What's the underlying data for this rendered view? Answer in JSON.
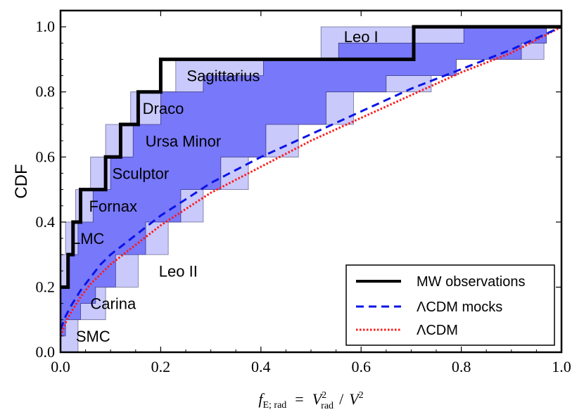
{
  "chart_data": {
    "type": "line",
    "xlabel": {
      "f": "f",
      "f_sub": "E; rad",
      "equals": "=",
      "V": "V",
      "V_sup": "2",
      "V_sub": "rad",
      "slash": "/",
      "V2": "V",
      "V2_sup": "2"
    },
    "ylabel": "CDF",
    "xlim": [
      0.0,
      1.0
    ],
    "ylim": [
      0.0,
      1.05
    ],
    "xticks": [
      "0.0",
      "0.2",
      "0.4",
      "0.6",
      "0.8",
      "1.0"
    ],
    "yticks": [
      "0.0",
      "0.2",
      "0.4",
      "0.6",
      "0.8",
      "1.0"
    ],
    "colors": {
      "outer_band": "#c9c9fb",
      "inner_band": "#7878fb",
      "observations": "#000000",
      "mocks": "#0a14e6",
      "lcdm": "#ff1a1a"
    },
    "series": [
      {
        "name": "MW observations",
        "style": "solid",
        "steps": [
          [
            0.0,
            0.2
          ],
          [
            0.015,
            0.3
          ],
          [
            0.025,
            0.4
          ],
          [
            0.04,
            0.5
          ],
          [
            0.09,
            0.6
          ],
          [
            0.12,
            0.7
          ],
          [
            0.155,
            0.8
          ],
          [
            0.2,
            0.9
          ],
          [
            0.705,
            1.0
          ]
        ]
      },
      {
        "name": "ΛCDM mocks",
        "style": "dashed",
        "points": [
          [
            0.0,
            0.07
          ],
          [
            0.01,
            0.11
          ],
          [
            0.02,
            0.14
          ],
          [
            0.04,
            0.19
          ],
          [
            0.06,
            0.23
          ],
          [
            0.08,
            0.27
          ],
          [
            0.1,
            0.3
          ],
          [
            0.15,
            0.36
          ],
          [
            0.2,
            0.42
          ],
          [
            0.25,
            0.47
          ],
          [
            0.3,
            0.52
          ],
          [
            0.4,
            0.6
          ],
          [
            0.5,
            0.67
          ],
          [
            0.6,
            0.74
          ],
          [
            0.7,
            0.81
          ],
          [
            0.8,
            0.87
          ],
          [
            0.9,
            0.93
          ],
          [
            1.0,
            1.0
          ]
        ]
      },
      {
        "name": "ΛCDM",
        "style": "dotted",
        "points": [
          [
            0.0,
            0.05
          ],
          [
            0.01,
            0.09
          ],
          [
            0.02,
            0.12
          ],
          [
            0.04,
            0.17
          ],
          [
            0.06,
            0.21
          ],
          [
            0.08,
            0.24
          ],
          [
            0.1,
            0.27
          ],
          [
            0.15,
            0.33
          ],
          [
            0.2,
            0.39
          ],
          [
            0.25,
            0.44
          ],
          [
            0.3,
            0.49
          ],
          [
            0.4,
            0.57
          ],
          [
            0.5,
            0.65
          ],
          [
            0.6,
            0.72
          ],
          [
            0.7,
            0.79
          ],
          [
            0.8,
            0.86
          ],
          [
            0.9,
            0.92
          ],
          [
            1.0,
            1.0
          ]
        ]
      }
    ],
    "bands": {
      "outer_upper": [
        [
          0.0,
          0.3
        ],
        [
          0.01,
          0.4
        ],
        [
          0.03,
          0.5
        ],
        [
          0.06,
          0.6
        ],
        [
          0.09,
          0.7
        ],
        [
          0.14,
          0.8
        ],
        [
          0.23,
          0.9
        ],
        [
          0.52,
          1.0
        ],
        [
          1.0,
          1.0
        ]
      ],
      "outer_lower": [
        [
          0.0,
          0.0
        ],
        [
          0.035,
          0.1
        ],
        [
          0.09,
          0.2
        ],
        [
          0.155,
          0.3
        ],
        [
          0.215,
          0.4
        ],
        [
          0.285,
          0.5
        ],
        [
          0.375,
          0.6
        ],
        [
          0.475,
          0.7
        ],
        [
          0.585,
          0.8
        ],
        [
          0.74,
          0.9
        ],
        [
          0.965,
          1.0
        ],
        [
          1.0,
          1.0
        ]
      ],
      "inner_upper": [
        [
          0.0,
          0.2
        ],
        [
          0.015,
          0.3
        ],
        [
          0.035,
          0.4
        ],
        [
          0.065,
          0.5
        ],
        [
          0.1,
          0.6
        ],
        [
          0.145,
          0.7
        ],
        [
          0.2,
          0.8
        ],
        [
          0.285,
          0.85
        ],
        [
          0.405,
          0.9
        ],
        [
          0.555,
          0.95
        ],
        [
          0.805,
          1.0
        ],
        [
          1.0,
          1.0
        ]
      ],
      "inner_lower": [
        [
          0.0,
          0.05
        ],
        [
          0.01,
          0.1
        ],
        [
          0.04,
          0.15
        ],
        [
          0.07,
          0.2
        ],
        [
          0.11,
          0.3
        ],
        [
          0.17,
          0.4
        ],
        [
          0.24,
          0.5
        ],
        [
          0.32,
          0.6
        ],
        [
          0.41,
          0.7
        ],
        [
          0.53,
          0.8
        ],
        [
          0.65,
          0.85
        ],
        [
          0.79,
          0.9
        ],
        [
          0.92,
          0.95
        ],
        [
          0.97,
          1.0
        ],
        [
          1.0,
          1.0
        ]
      ]
    },
    "annotations": [
      {
        "text": "Leo I",
        "x": 0.6,
        "y": 0.965
      },
      {
        "text": "Sagittarius",
        "x": 0.325,
        "y": 0.845
      },
      {
        "text": "Draco",
        "x": 0.205,
        "y": 0.745
      },
      {
        "text": "Ursa Minor",
        "x": 0.245,
        "y": 0.645
      },
      {
        "text": "Sculptor",
        "x": 0.16,
        "y": 0.545
      },
      {
        "text": "Fornax",
        "x": 0.105,
        "y": 0.445
      },
      {
        "text": "LMC",
        "x": 0.055,
        "y": 0.345
      },
      {
        "text": "Leo II",
        "x": 0.235,
        "y": 0.245
      },
      {
        "text": "Carina",
        "x": 0.105,
        "y": 0.145
      },
      {
        "text": "SMC",
        "x": 0.065,
        "y": 0.045
      }
    ],
    "legend": {
      "position": "bottom-right",
      "entries": [
        "MW observations",
        "ΛCDM mocks",
        "ΛCDM"
      ]
    }
  }
}
